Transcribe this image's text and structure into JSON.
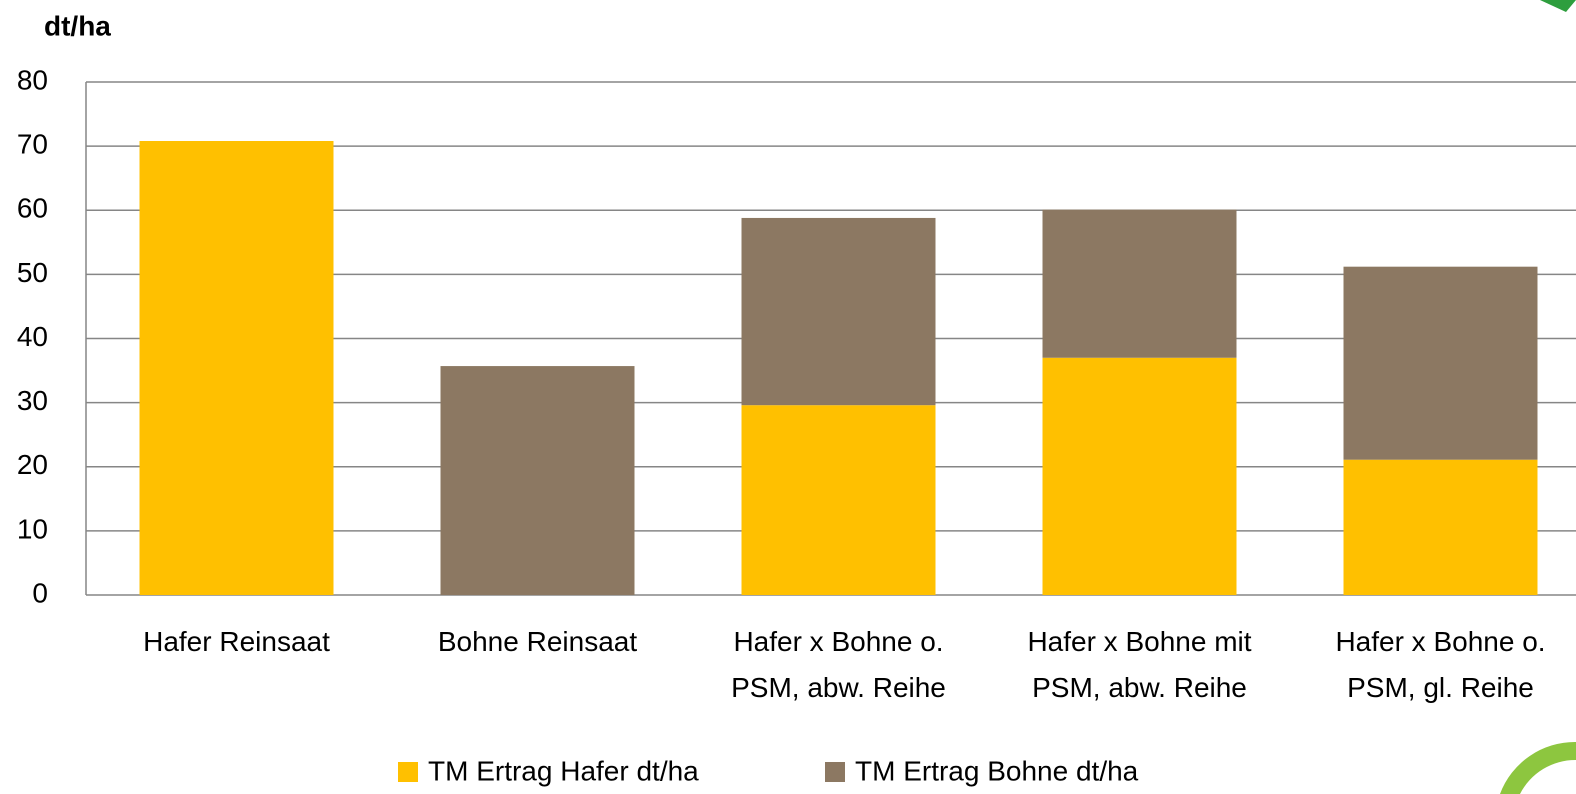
{
  "chart_data": {
    "type": "stacked_bar",
    "title": "dt/ha",
    "categories": [
      "Hafer Reinsaat",
      "Bohne Reinsaat",
      "Hafer x Bohne o.\nPSM, abw. Reihe",
      "Hafer x Bohne mit\nPSM, abw. Reihe",
      "Hafer x Bohne o.\nPSM, gl. Reihe"
    ],
    "series": [
      {
        "name": "TM Ertrag Hafer dt/ha",
        "color": "#ffc000",
        "values": [
          70.8,
          0,
          29.6,
          37.0,
          21.1
        ]
      },
      {
        "name": "TM Ertrag Bohne dt/ha",
        "color": "#8c7862",
        "values": [
          0,
          35.7,
          29.2,
          23.1,
          30.1
        ]
      }
    ],
    "ylim": [
      0,
      80
    ],
    "yticks": [
      0,
      10,
      20,
      30,
      40,
      50,
      60,
      70,
      80
    ],
    "grid": true,
    "legend": "bottom"
  }
}
